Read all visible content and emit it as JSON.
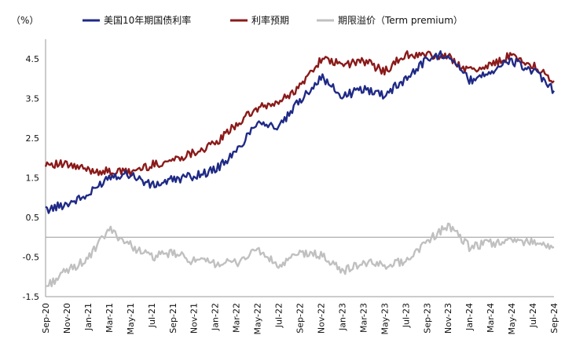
{
  "chart_data": {
    "type": "line",
    "unit_label": "（%）",
    "ylim": [
      -1.5,
      5.0
    ],
    "yticks": [
      "4.5",
      "3.5",
      "2.5",
      "1.5",
      "0.5",
      "-0.5",
      "-1.5"
    ],
    "ytick_values": [
      4.5,
      3.5,
      2.5,
      1.5,
      0.5,
      -0.5,
      -1.5
    ],
    "negative_tick_color": "#d9261c",
    "xlabels": [
      "Sep-20",
      "Nov-20",
      "Jan-21",
      "Mar-21",
      "May-21",
      "Jul-21",
      "Sep-21",
      "Nov-21",
      "Jan-22",
      "Mar-22",
      "May-22",
      "Jul-22",
      "Sep-22",
      "Nov-22",
      "Jan-23",
      "Mar-23",
      "May-23",
      "Jul-23",
      "Sep-23",
      "Nov-23",
      "Jan-24",
      "Mar-24",
      "May-24",
      "Jul-24",
      "Sep-24"
    ],
    "x": [
      "Sep-20",
      "Nov-20",
      "Jan-21",
      "Mar-21",
      "May-21",
      "Jul-21",
      "Sep-21",
      "Nov-21",
      "Jan-22",
      "Mar-22",
      "May-22",
      "Jul-22",
      "Sep-22",
      "Nov-22",
      "Jan-23",
      "Mar-23",
      "May-23",
      "Jul-23",
      "Sep-23",
      "Nov-23",
      "Jan-24",
      "Mar-24",
      "May-24",
      "Jul-24",
      "Sep-24"
    ],
    "series": [
      {
        "name": "美国10年期国债利率",
        "color": "#1f2a86",
        "values": [
          0.68,
          0.85,
          1.05,
          1.55,
          1.6,
          1.3,
          1.45,
          1.55,
          1.7,
          2.15,
          2.95,
          2.75,
          3.45,
          4.05,
          3.55,
          3.75,
          3.6,
          4.0,
          4.5,
          4.65,
          3.95,
          4.2,
          4.45,
          4.2,
          3.7
        ]
      },
      {
        "name": "利率预期",
        "color": "#8b1a1a",
        "values": [
          1.88,
          1.82,
          1.7,
          1.65,
          1.65,
          1.82,
          1.95,
          2.15,
          2.35,
          2.85,
          3.25,
          3.4,
          3.8,
          4.5,
          4.35,
          4.45,
          4.2,
          4.6,
          4.6,
          4.55,
          4.2,
          4.35,
          4.6,
          4.35,
          3.95
        ]
      },
      {
        "name": "期限溢价（Term premium）",
        "color": "#c0c0c0",
        "values": [
          -1.25,
          -0.85,
          -0.55,
          0.2,
          -0.2,
          -0.5,
          -0.4,
          -0.6,
          -0.65,
          -0.65,
          -0.3,
          -0.75,
          -0.4,
          -0.45,
          -0.85,
          -0.65,
          -0.7,
          -0.6,
          -0.1,
          0.3,
          -0.25,
          -0.15,
          -0.1,
          -0.1,
          -0.25
        ]
      }
    ],
    "grid": false,
    "legend_position": "top"
  }
}
